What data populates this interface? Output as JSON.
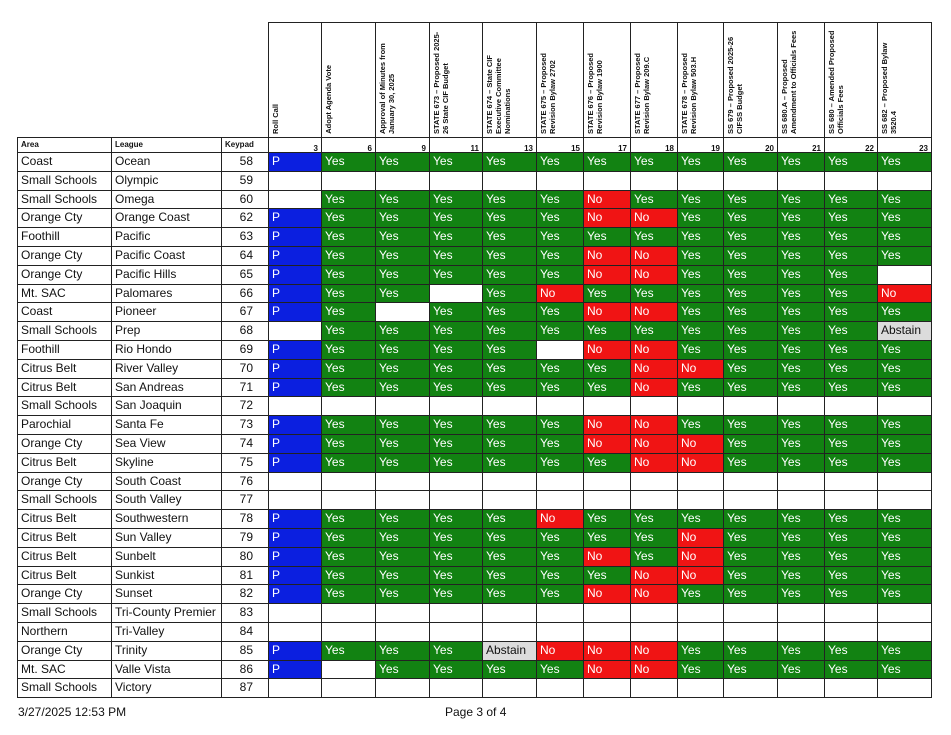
{
  "table": {
    "header": [
      "Area",
      "League",
      "Keypad"
    ],
    "motions": [
      {
        "title": "Roll Call",
        "number": 3
      },
      {
        "title": "Adopt Agenda Vote",
        "number": 6
      },
      {
        "title": "Approval of Minutes from January 30, 2025",
        "number": 9
      },
      {
        "title": "STATE 673 – Proposed 2025-26 State CIF Budget",
        "number": 11
      },
      {
        "title": "STATE 674 – State CIF Executive Committee Nominations",
        "number": 13
      },
      {
        "title": "STATE 675 – Proposed Revision Bylaw 2702",
        "number": 15
      },
      {
        "title": "STATE 676 – Proposed Revision Bylaw 1900",
        "number": 17
      },
      {
        "title": "STATE 677 – Proposed Revision Bylaw 209.C",
        "number": 18
      },
      {
        "title": "STATE 678 – Proposed Revision Bylaw 503.H",
        "number": 19
      },
      {
        "title": "SS 679 – Proposed 2025-26 CIFSS Budget",
        "number": 20
      },
      {
        "title": "SS 680.A – Proposed Amendment to Officials Fees",
        "number": 21
      },
      {
        "title": "SS 680 – Amended Proposed Officials Fees",
        "number": 22
      },
      {
        "title": "SS 682 – Proposed Bylaw 3520.4",
        "number": 23
      }
    ],
    "cell_colors": {
      "P": {
        "bg": "#0b1fe0",
        "fg": "#ffffff"
      },
      "Yes": {
        "bg": "#128212",
        "fg": "#ffffff"
      },
      "No": {
        "bg": "#f01414",
        "fg": "#ffffff"
      },
      "Abstain": {
        "bg": "#dcdcdc",
        "fg": "#111111"
      }
    },
    "rows": [
      {
        "area": "Coast",
        "league": "Ocean",
        "keypad": 58,
        "votes": [
          "P",
          "Yes",
          "Yes",
          "Yes",
          "Yes",
          "Yes",
          "Yes",
          "Yes",
          "Yes",
          "Yes",
          "Yes",
          "Yes",
          "Yes"
        ]
      },
      {
        "area": "Small Schools",
        "league": "Olympic",
        "keypad": 59,
        "votes": [
          null,
          null,
          null,
          null,
          null,
          null,
          null,
          null,
          null,
          null,
          null,
          null,
          null
        ]
      },
      {
        "area": "Small Schools",
        "league": "Omega",
        "keypad": 60,
        "votes": [
          null,
          "Yes",
          "Yes",
          "Yes",
          "Yes",
          "Yes",
          "No",
          "Yes",
          "Yes",
          "Yes",
          "Yes",
          "Yes",
          "Yes"
        ]
      },
      {
        "area": "Orange Cty",
        "league": "Orange Coast",
        "keypad": 62,
        "votes": [
          "P",
          "Yes",
          "Yes",
          "Yes",
          "Yes",
          "Yes",
          "No",
          "No",
          "Yes",
          "Yes",
          "Yes",
          "Yes",
          "Yes"
        ]
      },
      {
        "area": "Foothill",
        "league": "Pacific",
        "keypad": 63,
        "votes": [
          "P",
          "Yes",
          "Yes",
          "Yes",
          "Yes",
          "Yes",
          "Yes",
          "Yes",
          "Yes",
          "Yes",
          "Yes",
          "Yes",
          "Yes"
        ]
      },
      {
        "area": "Orange Cty",
        "league": "Pacific Coast",
        "keypad": 64,
        "votes": [
          "P",
          "Yes",
          "Yes",
          "Yes",
          "Yes",
          "Yes",
          "No",
          "No",
          "Yes",
          "Yes",
          "Yes",
          "Yes",
          "Yes"
        ]
      },
      {
        "area": "Orange Cty",
        "league": "Pacific Hills",
        "keypad": 65,
        "votes": [
          "P",
          "Yes",
          "Yes",
          "Yes",
          "Yes",
          "Yes",
          "No",
          "No",
          "Yes",
          "Yes",
          "Yes",
          "Yes",
          null
        ]
      },
      {
        "area": "Mt. SAC",
        "league": "Palomares",
        "keypad": 66,
        "votes": [
          "P",
          "Yes",
          "Yes",
          null,
          "Yes",
          "No",
          "Yes",
          "Yes",
          "Yes",
          "Yes",
          "Yes",
          "Yes",
          "No"
        ]
      },
      {
        "area": "Coast",
        "league": "Pioneer",
        "keypad": 67,
        "votes": [
          "P",
          "Yes",
          null,
          "Yes",
          "Yes",
          "Yes",
          "No",
          "No",
          "Yes",
          "Yes",
          "Yes",
          "Yes",
          "Yes"
        ]
      },
      {
        "area": "Small Schools",
        "league": "Prep",
        "keypad": 68,
        "votes": [
          null,
          "Yes",
          "Yes",
          "Yes",
          "Yes",
          "Yes",
          "Yes",
          "Yes",
          "Yes",
          "Yes",
          "Yes",
          "Yes",
          "Abstain"
        ]
      },
      {
        "area": "Foothill",
        "league": "Rio Hondo",
        "keypad": 69,
        "votes": [
          "P",
          "Yes",
          "Yes",
          "Yes",
          "Yes",
          null,
          "No",
          "No",
          "Yes",
          "Yes",
          "Yes",
          "Yes",
          "Yes"
        ]
      },
      {
        "area": "Citrus Belt",
        "league": "River Valley",
        "keypad": 70,
        "votes": [
          "P",
          "Yes",
          "Yes",
          "Yes",
          "Yes",
          "Yes",
          "Yes",
          "No",
          "No",
          "Yes",
          "Yes",
          "Yes",
          "Yes"
        ]
      },
      {
        "area": "Citrus Belt",
        "league": "San Andreas",
        "keypad": 71,
        "votes": [
          "P",
          "Yes",
          "Yes",
          "Yes",
          "Yes",
          "Yes",
          "Yes",
          "No",
          "Yes",
          "Yes",
          "Yes",
          "Yes",
          "Yes"
        ]
      },
      {
        "area": "Small Schools",
        "league": "San Joaquin",
        "keypad": 72,
        "votes": [
          null,
          null,
          null,
          null,
          null,
          null,
          null,
          null,
          null,
          null,
          null,
          null,
          null
        ]
      },
      {
        "area": "Parochial",
        "league": "Santa Fe",
        "keypad": 73,
        "votes": [
          "P",
          "Yes",
          "Yes",
          "Yes",
          "Yes",
          "Yes",
          "No",
          "No",
          "Yes",
          "Yes",
          "Yes",
          "Yes",
          "Yes"
        ]
      },
      {
        "area": "Orange Cty",
        "league": "Sea View",
        "keypad": 74,
        "votes": [
          "P",
          "Yes",
          "Yes",
          "Yes",
          "Yes",
          "Yes",
          "No",
          "No",
          "No",
          "Yes",
          "Yes",
          "Yes",
          "Yes"
        ]
      },
      {
        "area": "Citrus Belt",
        "league": "Skyline",
        "keypad": 75,
        "votes": [
          "P",
          "Yes",
          "Yes",
          "Yes",
          "Yes",
          "Yes",
          "Yes",
          "No",
          "No",
          "Yes",
          "Yes",
          "Yes",
          "Yes"
        ]
      },
      {
        "area": "Orange Cty",
        "league": "South Coast",
        "keypad": 76,
        "votes": [
          null,
          null,
          null,
          null,
          null,
          null,
          null,
          null,
          null,
          null,
          null,
          null,
          null
        ]
      },
      {
        "area": "Small Schools",
        "league": "South Valley",
        "keypad": 77,
        "votes": [
          null,
          null,
          null,
          null,
          null,
          null,
          null,
          null,
          null,
          null,
          null,
          null,
          null
        ]
      },
      {
        "area": "Citrus Belt",
        "league": "Southwestern",
        "keypad": 78,
        "votes": [
          "P",
          "Yes",
          "Yes",
          "Yes",
          "Yes",
          "No",
          "Yes",
          "Yes",
          "Yes",
          "Yes",
          "Yes",
          "Yes",
          "Yes"
        ]
      },
      {
        "area": "Citrus Belt",
        "league": "Sun Valley",
        "keypad": 79,
        "votes": [
          "P",
          "Yes",
          "Yes",
          "Yes",
          "Yes",
          "Yes",
          "Yes",
          "Yes",
          "No",
          "Yes",
          "Yes",
          "Yes",
          "Yes"
        ]
      },
      {
        "area": "Citrus Belt",
        "league": "Sunbelt",
        "keypad": 80,
        "votes": [
          "P",
          "Yes",
          "Yes",
          "Yes",
          "Yes",
          "Yes",
          "No",
          "Yes",
          "No",
          "Yes",
          "Yes",
          "Yes",
          "Yes"
        ]
      },
      {
        "area": "Citrus Belt",
        "league": "Sunkist",
        "keypad": 81,
        "votes": [
          "P",
          "Yes",
          "Yes",
          "Yes",
          "Yes",
          "Yes",
          "Yes",
          "No",
          "No",
          "Yes",
          "Yes",
          "Yes",
          "Yes"
        ]
      },
      {
        "area": "Orange Cty",
        "league": "Sunset",
        "keypad": 82,
        "votes": [
          "P",
          "Yes",
          "Yes",
          "Yes",
          "Yes",
          "Yes",
          "No",
          "No",
          "Yes",
          "Yes",
          "Yes",
          "Yes",
          "Yes"
        ]
      },
      {
        "area": "Small Schools",
        "league": "Tri-County Premier",
        "keypad": 83,
        "votes": [
          null,
          null,
          null,
          null,
          null,
          null,
          null,
          null,
          null,
          null,
          null,
          null,
          null
        ]
      },
      {
        "area": "Northern",
        "league": "Tri-Valley",
        "keypad": 84,
        "votes": [
          null,
          null,
          null,
          null,
          null,
          null,
          null,
          null,
          null,
          null,
          null,
          null,
          null
        ]
      },
      {
        "area": "Orange Cty",
        "league": "Trinity",
        "keypad": 85,
        "votes": [
          "P",
          "Yes",
          "Yes",
          "Yes",
          "Abstain",
          "No",
          "No",
          "No",
          "Yes",
          "Yes",
          "Yes",
          "Yes",
          "Yes"
        ]
      },
      {
        "area": "Mt. SAC",
        "league": "Valle Vista",
        "keypad": 86,
        "votes": [
          "P",
          null,
          "Yes",
          "Yes",
          "Yes",
          "Yes",
          "No",
          "No",
          "Yes",
          "Yes",
          "Yes",
          "Yes",
          "Yes"
        ]
      },
      {
        "area": "Small Schools",
        "league": "Victory",
        "keypad": 87,
        "votes": [
          null,
          null,
          null,
          null,
          null,
          null,
          null,
          null,
          null,
          null,
          null,
          null,
          null
        ]
      }
    ]
  },
  "footer": {
    "timestamp": "3/27/2025 12:53 PM",
    "page": "Page 3 of 4"
  }
}
